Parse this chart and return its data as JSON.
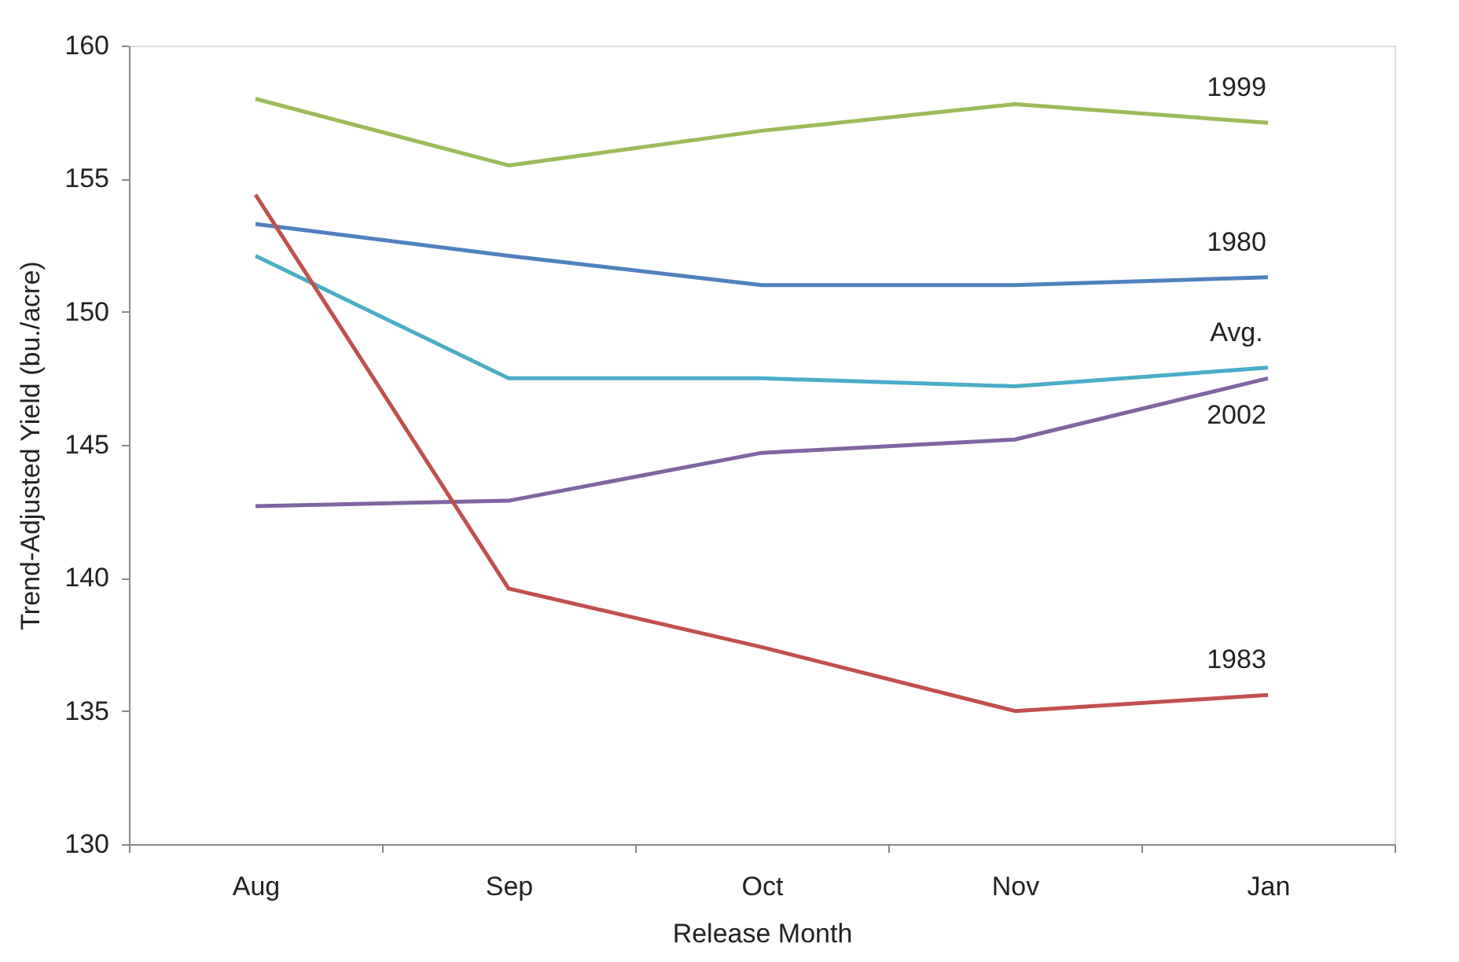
{
  "chart_data": {
    "type": "line",
    "xlabel": "Release Month",
    "ylabel": "Trend-Adjusted Yield (bu./acre)",
    "categories": [
      "Aug",
      "Sep",
      "Oct",
      "Nov",
      "Jan"
    ],
    "ylim": [
      130,
      160
    ],
    "yticks": [
      130,
      135,
      140,
      145,
      150,
      155,
      160
    ],
    "grid": false,
    "legend": false,
    "marker": "none",
    "line_style": "solid",
    "series": [
      {
        "name": "1999",
        "color": "#9bbb59",
        "values": [
          158.0,
          155.5,
          156.8,
          157.8,
          157.1
        ]
      },
      {
        "name": "1980",
        "color": "#4f81bd",
        "values": [
          153.3,
          152.1,
          151.0,
          151.0,
          151.3
        ]
      },
      {
        "name": "Avg.",
        "color": "#4bacc6",
        "values": [
          152.1,
          147.5,
          147.5,
          147.2,
          147.9
        ]
      },
      {
        "name": "2002",
        "color": "#8064a2",
        "values": [
          142.7,
          142.9,
          144.7,
          145.2,
          147.5
        ]
      },
      {
        "name": "1983",
        "color": "#c0504d",
        "values": [
          154.4,
          139.6,
          137.4,
          135.0,
          135.6
        ]
      }
    ]
  }
}
